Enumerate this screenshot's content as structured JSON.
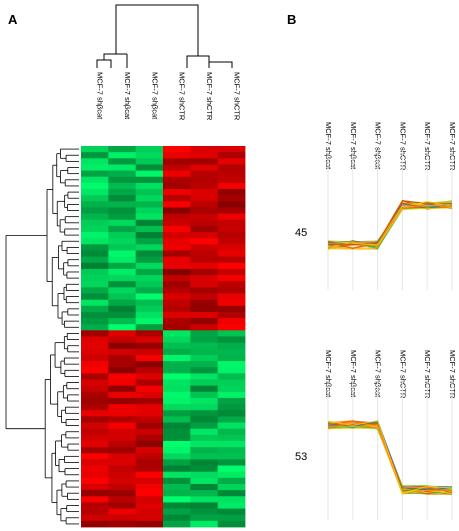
{
  "panels": {
    "a": "A",
    "b": "B"
  },
  "heatmap": {
    "columns": [
      "MCF-7 shβcat",
      "MCF-7 shβcat",
      "MCF-7 shβcat",
      "MCF-7 shCTR",
      "MCF-7 shCTR",
      "MCF-7 shCTR"
    ],
    "cluster_up_in_ctr_rows": 30,
    "cluster_down_in_ctr_rows": 32,
    "colors": {
      "low": "#00ff66",
      "mid": "#1a1a1a",
      "high": "#ff0000"
    }
  },
  "profiles": [
    {
      "id": "45",
      "columns": [
        "MCF-7 shβcat",
        "MCF-7 shβcat",
        "MCF-7 shβcat",
        "MCF-7 shCTR",
        "MCF-7 shCTR",
        "MCF-7 shCTR"
      ],
      "trend": "up"
    },
    {
      "id": "53",
      "columns": [
        "MCF-7 shβcat",
        "MCF-7 shβcat",
        "MCF-7 shβcat",
        "MCF-7 shCTR",
        "MCF-7 shCTR",
        "MCF-7 shCTR"
      ],
      "trend": "down"
    }
  ]
}
